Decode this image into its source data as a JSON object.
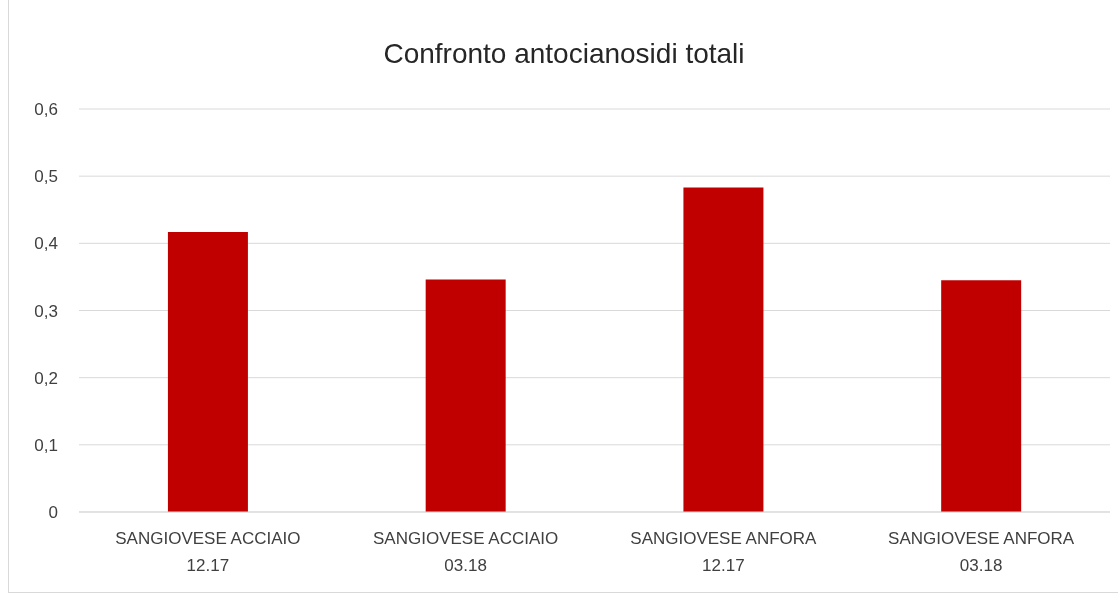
{
  "chart_data": {
    "type": "bar",
    "title": "Confronto antocianosidi totali",
    "categories": [
      "SANGIOVESE ACCIAIO 12.17",
      "SANGIOVESE ACCIAIO 03.18",
      "SANGIOVESE ANFORA 12.17",
      "SANGIOVESE ANFORA 03.18"
    ],
    "values": [
      0.417,
      0.346,
      0.483,
      0.345
    ],
    "color": "#c00000",
    "ylim": [
      0,
      0.6
    ],
    "yticks": [
      0,
      {
        "value": 0.1,
        "label": "0,1"
      },
      {
        "value": 0.2,
        "label": "0,2"
      },
      {
        "value": 0.3,
        "label": "0,3"
      },
      {
        "value": 0.4,
        "label": "0,4"
      },
      {
        "value": 0.5,
        "label": "0,5"
      },
      {
        "value": 0.6,
        "label": "0,6"
      }
    ],
    "grid": "y"
  }
}
